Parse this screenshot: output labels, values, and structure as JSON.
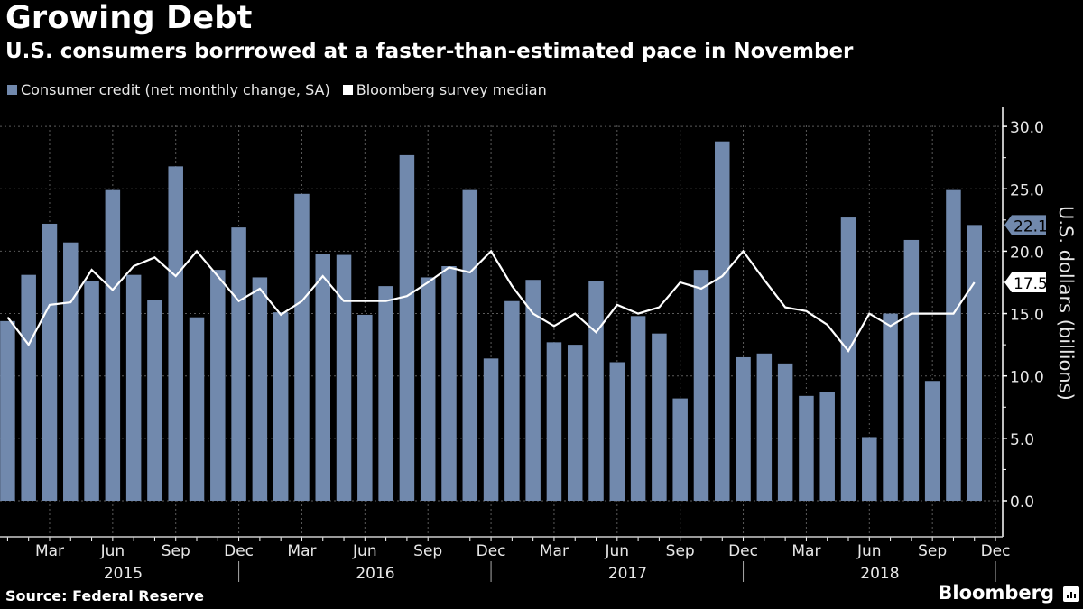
{
  "header": {
    "title": "Growing Debt",
    "subtitle": "U.S. consumers borrrowed at a faster-than-estimated pace in November"
  },
  "footer": {
    "source": "Source: Federal Reserve",
    "brand": "Bloomberg",
    "brand_icon": "bloomberg-chart-icon"
  },
  "colors": {
    "background": "#000000",
    "bars": "#7189ad",
    "line": "#ffffff",
    "grid": "#5a5a5a"
  },
  "chart_data": {
    "type": "bar",
    "title": "Growing Debt",
    "subtitle": "U.S. consumers borrrowed at a faster-than-estimated pace in November",
    "xlabel": "",
    "ylabel": "U.S. dollars (billions)",
    "ylim": [
      0,
      30
    ],
    "yticks": [
      "0.0",
      "5.0",
      "10.0",
      "15.0",
      "20.0",
      "25.0",
      "30.0"
    ],
    "ytick_values": [
      0,
      5,
      10,
      15,
      20,
      25,
      30
    ],
    "grid": true,
    "legend_position": "top-left",
    "x_start": "2015-01",
    "x_end": "2018-12",
    "month_ticks": [
      "Mar",
      "Jun",
      "Sep",
      "Dec",
      "Mar",
      "Jun",
      "Sep",
      "Dec",
      "Mar",
      "Jun",
      "Sep",
      "Dec",
      "Mar",
      "Jun",
      "Sep",
      "Dec"
    ],
    "month_tick_index": [
      2,
      5,
      8,
      11,
      14,
      17,
      20,
      23,
      26,
      29,
      32,
      35,
      38,
      41,
      44,
      47
    ],
    "years": [
      "2015",
      "2016",
      "2017",
      "2018"
    ],
    "x": [
      "2015-01",
      "2015-02",
      "2015-03",
      "2015-04",
      "2015-05",
      "2015-06",
      "2015-07",
      "2015-08",
      "2015-09",
      "2015-10",
      "2015-11",
      "2015-12",
      "2016-01",
      "2016-02",
      "2016-03",
      "2016-04",
      "2016-05",
      "2016-06",
      "2016-07",
      "2016-08",
      "2016-09",
      "2016-10",
      "2016-11",
      "2016-12",
      "2017-01",
      "2017-02",
      "2017-03",
      "2017-04",
      "2017-05",
      "2017-06",
      "2017-07",
      "2017-08",
      "2017-09",
      "2017-10",
      "2017-11",
      "2017-12",
      "2018-01",
      "2018-02",
      "2018-03",
      "2018-04",
      "2018-05",
      "2018-06",
      "2018-07",
      "2018-08",
      "2018-09",
      "2018-10",
      "2018-11"
    ],
    "series": [
      {
        "name": "Consumer credit (net monthly change, SA)",
        "type": "bar",
        "values": [
          14.4,
          18.1,
          22.2,
          20.7,
          17.6,
          24.9,
          18.1,
          16.1,
          26.8,
          14.7,
          18.5,
          21.9,
          17.9,
          15.1,
          24.6,
          19.8,
          19.7,
          14.9,
          17.2,
          27.7,
          17.9,
          18.8,
          24.9,
          11.4,
          16.0,
          17.7,
          12.7,
          12.5,
          17.6,
          11.1,
          14.8,
          13.4,
          8.2,
          18.5,
          28.8,
          11.5,
          11.8,
          11.0,
          8.4,
          8.7,
          22.7,
          5.1,
          15.0,
          20.9,
          9.6,
          24.9,
          22.1
        ]
      },
      {
        "name": "Bloomberg survey median",
        "type": "line",
        "values": [
          14.7,
          12.5,
          15.7,
          15.9,
          18.5,
          16.9,
          18.8,
          19.5,
          18.0,
          20.0,
          18.0,
          16.0,
          17.0,
          14.9,
          16.0,
          18.0,
          16.0,
          16.0,
          16.0,
          16.4,
          17.5,
          18.7,
          18.3,
          20.0,
          17.2,
          15.0,
          14.0,
          15.0,
          13.5,
          15.7,
          15.0,
          15.5,
          17.5,
          17.0,
          18.0,
          20.0,
          17.7,
          15.5,
          15.2,
          14.1,
          12.0,
          15.0,
          14.0,
          15.0,
          15.0,
          15.0,
          17.5
        ]
      }
    ],
    "last_value_labels": [
      {
        "series": "Consumer credit (net monthly change, SA)",
        "text": "22.1",
        "value": 22.1
      },
      {
        "series": "Bloomberg survey median",
        "text": "17.5",
        "value": 17.5
      }
    ]
  }
}
